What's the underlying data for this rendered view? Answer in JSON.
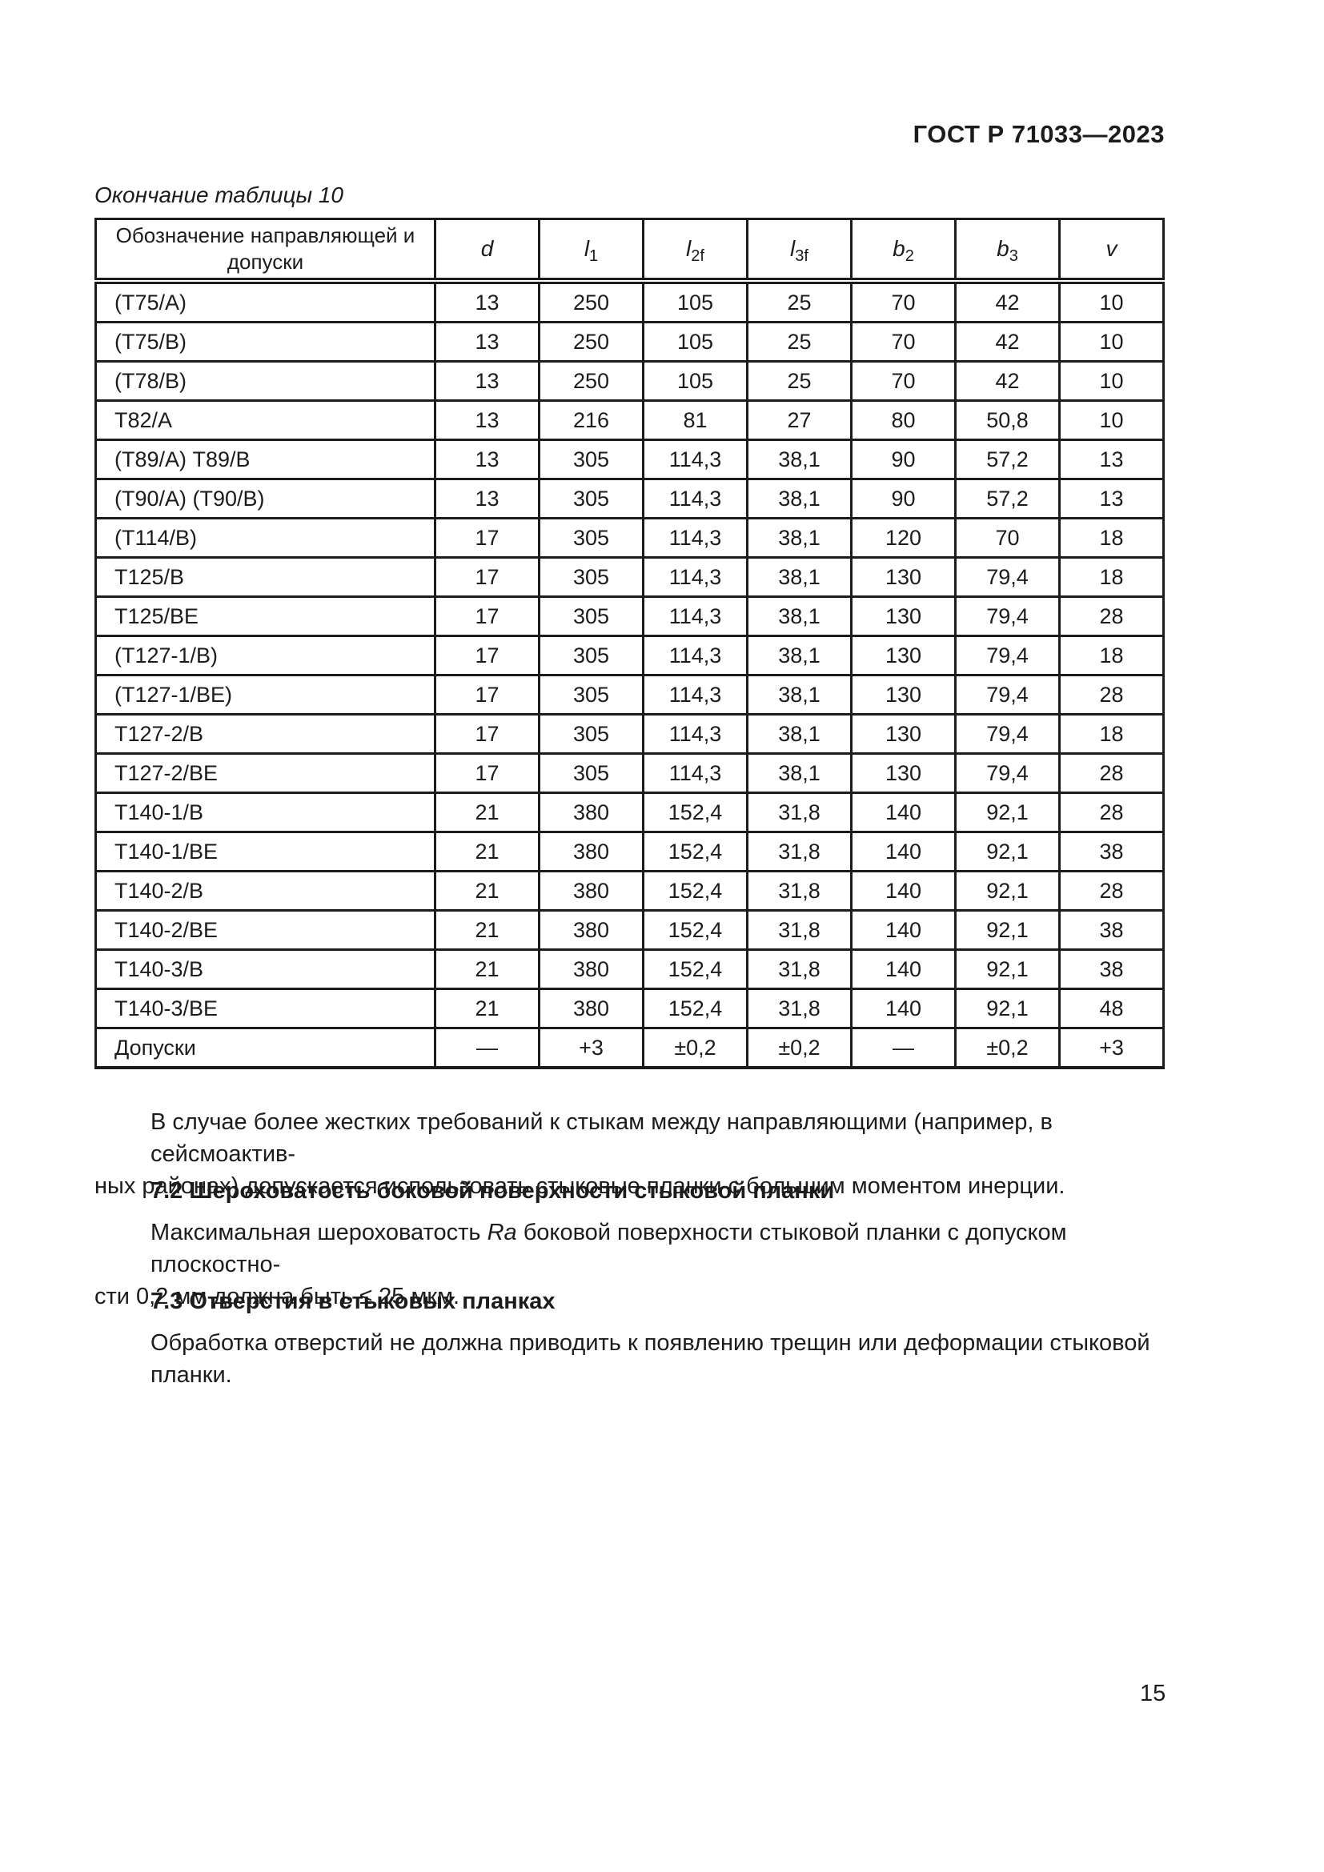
{
  "page": {
    "doc_code": "ГОСТ Р 71033—2023",
    "page_number": "15"
  },
  "table": {
    "caption": "Окончание таблицы 10",
    "col1_header_line1": "Обозначение направляющей и",
    "col1_header_line2": "допуски",
    "columns": [
      {
        "base": "d",
        "sub": ""
      },
      {
        "base": "l",
        "sub": "1"
      },
      {
        "base": "l",
        "sub": "2f"
      },
      {
        "base": "l",
        "sub": "3f"
      },
      {
        "base": "b",
        "sub": "2"
      },
      {
        "base": "b",
        "sub": "3"
      },
      {
        "base": "v",
        "sub": ""
      }
    ],
    "rows": [
      {
        "name": "(Т75/А)",
        "values": [
          "13",
          "250",
          "105",
          "25",
          "70",
          "42",
          "10"
        ]
      },
      {
        "name": "(Т75/В)",
        "values": [
          "13",
          "250",
          "105",
          "25",
          "70",
          "42",
          "10"
        ]
      },
      {
        "name": "(Т78/В)",
        "values": [
          "13",
          "250",
          "105",
          "25",
          "70",
          "42",
          "10"
        ]
      },
      {
        "name": "Т82/А",
        "values": [
          "13",
          "216",
          "81",
          "27",
          "80",
          "50,8",
          "10"
        ]
      },
      {
        "name": "(Т89/А) Т89/В",
        "values": [
          "13",
          "305",
          "114,3",
          "38,1",
          "90",
          "57,2",
          "13"
        ]
      },
      {
        "name": "(Т90/А) (Т90/В)",
        "values": [
          "13",
          "305",
          "114,3",
          "38,1",
          "90",
          "57,2",
          "13"
        ]
      },
      {
        "name": "(Т114/В)",
        "values": [
          "17",
          "305",
          "114,3",
          "38,1",
          "120",
          "70",
          "18"
        ]
      },
      {
        "name": "Т125/В",
        "values": [
          "17",
          "305",
          "114,3",
          "38,1",
          "130",
          "79,4",
          "18"
        ]
      },
      {
        "name": "Т125/ВЕ",
        "values": [
          "17",
          "305",
          "114,3",
          "38,1",
          "130",
          "79,4",
          "28"
        ]
      },
      {
        "name": "(Т127-1/В)",
        "values": [
          "17",
          "305",
          "114,3",
          "38,1",
          "130",
          "79,4",
          "18"
        ]
      },
      {
        "name": "(Т127-1/ВЕ)",
        "values": [
          "17",
          "305",
          "114,3",
          "38,1",
          "130",
          "79,4",
          "28"
        ]
      },
      {
        "name": "Т127-2/В",
        "values": [
          "17",
          "305",
          "114,3",
          "38,1",
          "130",
          "79,4",
          "18"
        ]
      },
      {
        "name": "Т127-2/ВЕ",
        "values": [
          "17",
          "305",
          "114,3",
          "38,1",
          "130",
          "79,4",
          "28"
        ]
      },
      {
        "name": "Т140-1/В",
        "values": [
          "21",
          "380",
          "152,4",
          "31,8",
          "140",
          "92,1",
          "28"
        ]
      },
      {
        "name": "Т140-1/ВЕ",
        "values": [
          "21",
          "380",
          "152,4",
          "31,8",
          "140",
          "92,1",
          "38"
        ]
      },
      {
        "name": "Т140-2/В",
        "values": [
          "21",
          "380",
          "152,4",
          "31,8",
          "140",
          "92,1",
          "28"
        ]
      },
      {
        "name": "Т140-2/ВЕ",
        "values": [
          "21",
          "380",
          "152,4",
          "31,8",
          "140",
          "92,1",
          "38"
        ]
      },
      {
        "name": "Т140-3/В",
        "values": [
          "21",
          "380",
          "152,4",
          "31,8",
          "140",
          "92,1",
          "38"
        ]
      },
      {
        "name": "Т140-3/ВЕ",
        "values": [
          "21",
          "380",
          "152,4",
          "31,8",
          "140",
          "92,1",
          "48"
        ]
      },
      {
        "name": "Допуски",
        "values": [
          "—",
          "+3",
          "±0,2",
          "±0,2",
          "—",
          "±0,2",
          "+3"
        ]
      }
    ]
  },
  "content": {
    "para1_line1": "В случае более жестких требований к стыкам между направляющими (например, в сейсмоактив-",
    "para1_line2": "ных районах) допускается использовать стыковые планки с большим моментом инерции.",
    "heading_72": "7.2 Шероховатость боковой поверхности стыковой планки",
    "para2_line1_pre": "Максимальная шероховатость ",
    "para2_ra": "Ra",
    "para2_line1_post": " боковой поверхности стыковой планки с допуском плоскостно-",
    "para2_line2": "сти 0,2 мм должна быть ≤ 25 мкм.",
    "heading_73": "7.3 Отверстия в стыковых планках",
    "para3": "Обработка отверстий не должна приводить к появлению трещин или деформации стыковой планки."
  }
}
